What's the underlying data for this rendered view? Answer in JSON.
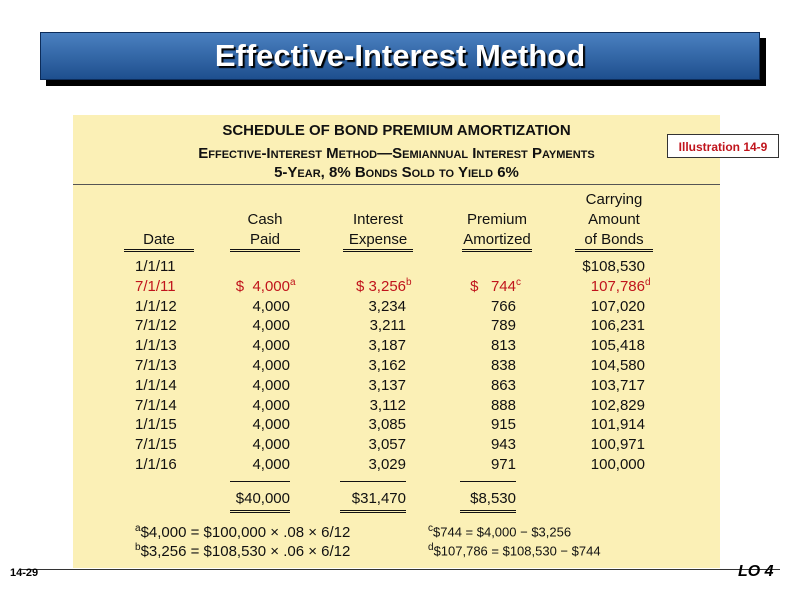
{
  "header": {
    "title": "Effective-Interest Method"
  },
  "illustration": "Illustration 14-9",
  "table": {
    "title_lines": [
      "SCHEDULE OF BOND PREMIUM AMORTIZATION",
      "Effective-Interest Method—Semiannual Interest Payments",
      "5-Year, 8% Bonds Sold to Yield 6%"
    ],
    "columns": [
      [
        "Date"
      ],
      [
        "Cash",
        "Paid"
      ],
      [
        "Interest",
        "Expense"
      ],
      [
        "Premium",
        "Amortized"
      ],
      [
        "Carrying",
        "Amount",
        "of Bonds"
      ]
    ],
    "rows": [
      [
        "1/1/11",
        null,
        null,
        null,
        "$108,530"
      ],
      [
        "7/1/11",
        {
          "text": "$  4,000",
          "sup": "a"
        },
        {
          "text": "$ 3,256",
          "sup": "b"
        },
        {
          "text": "$   744",
          "sup": "c"
        },
        {
          "text": "107,786",
          "sup": "d"
        }
      ],
      [
        "1/1/12",
        "4,000",
        "3,234",
        "766",
        "107,020"
      ],
      [
        "7/1/12",
        "4,000",
        "3,211",
        "789",
        "106,231"
      ],
      [
        "1/1/13",
        "4,000",
        "3,187",
        "813",
        "105,418"
      ],
      [
        "7/1/13",
        "4,000",
        "3,162",
        "838",
        "104,580"
      ],
      [
        "1/1/14",
        "4,000",
        "3,137",
        "863",
        "103,717"
      ],
      [
        "7/1/14",
        "4,000",
        "3,112",
        "888",
        "102,829"
      ],
      [
        "1/1/15",
        "4,000",
        "3,085",
        "915",
        "101,914"
      ],
      [
        "7/1/15",
        "4,000",
        "3,057",
        "943",
        "100,971"
      ],
      [
        "1/1/16",
        "4,000",
        "3,029",
        "971",
        "100,000"
      ]
    ],
    "totals": [
      "$40,000",
      "$31,470",
      "$8,530"
    ],
    "footnotes": [
      {
        "mark": "a",
        "text": "$4,000 = $100,000 × .08 × 6/12"
      },
      {
        "mark": "b",
        "text": "$3,256 = $108,530 × .06 × 6/12"
      },
      {
        "mark": "c",
        "text": "$744 = $4,000 − $3,256"
      },
      {
        "mark": "d",
        "text": "$107,786 = $108,530 − $744"
      }
    ]
  },
  "footer": {
    "page": "14-29",
    "objective": "LO 4"
  }
}
